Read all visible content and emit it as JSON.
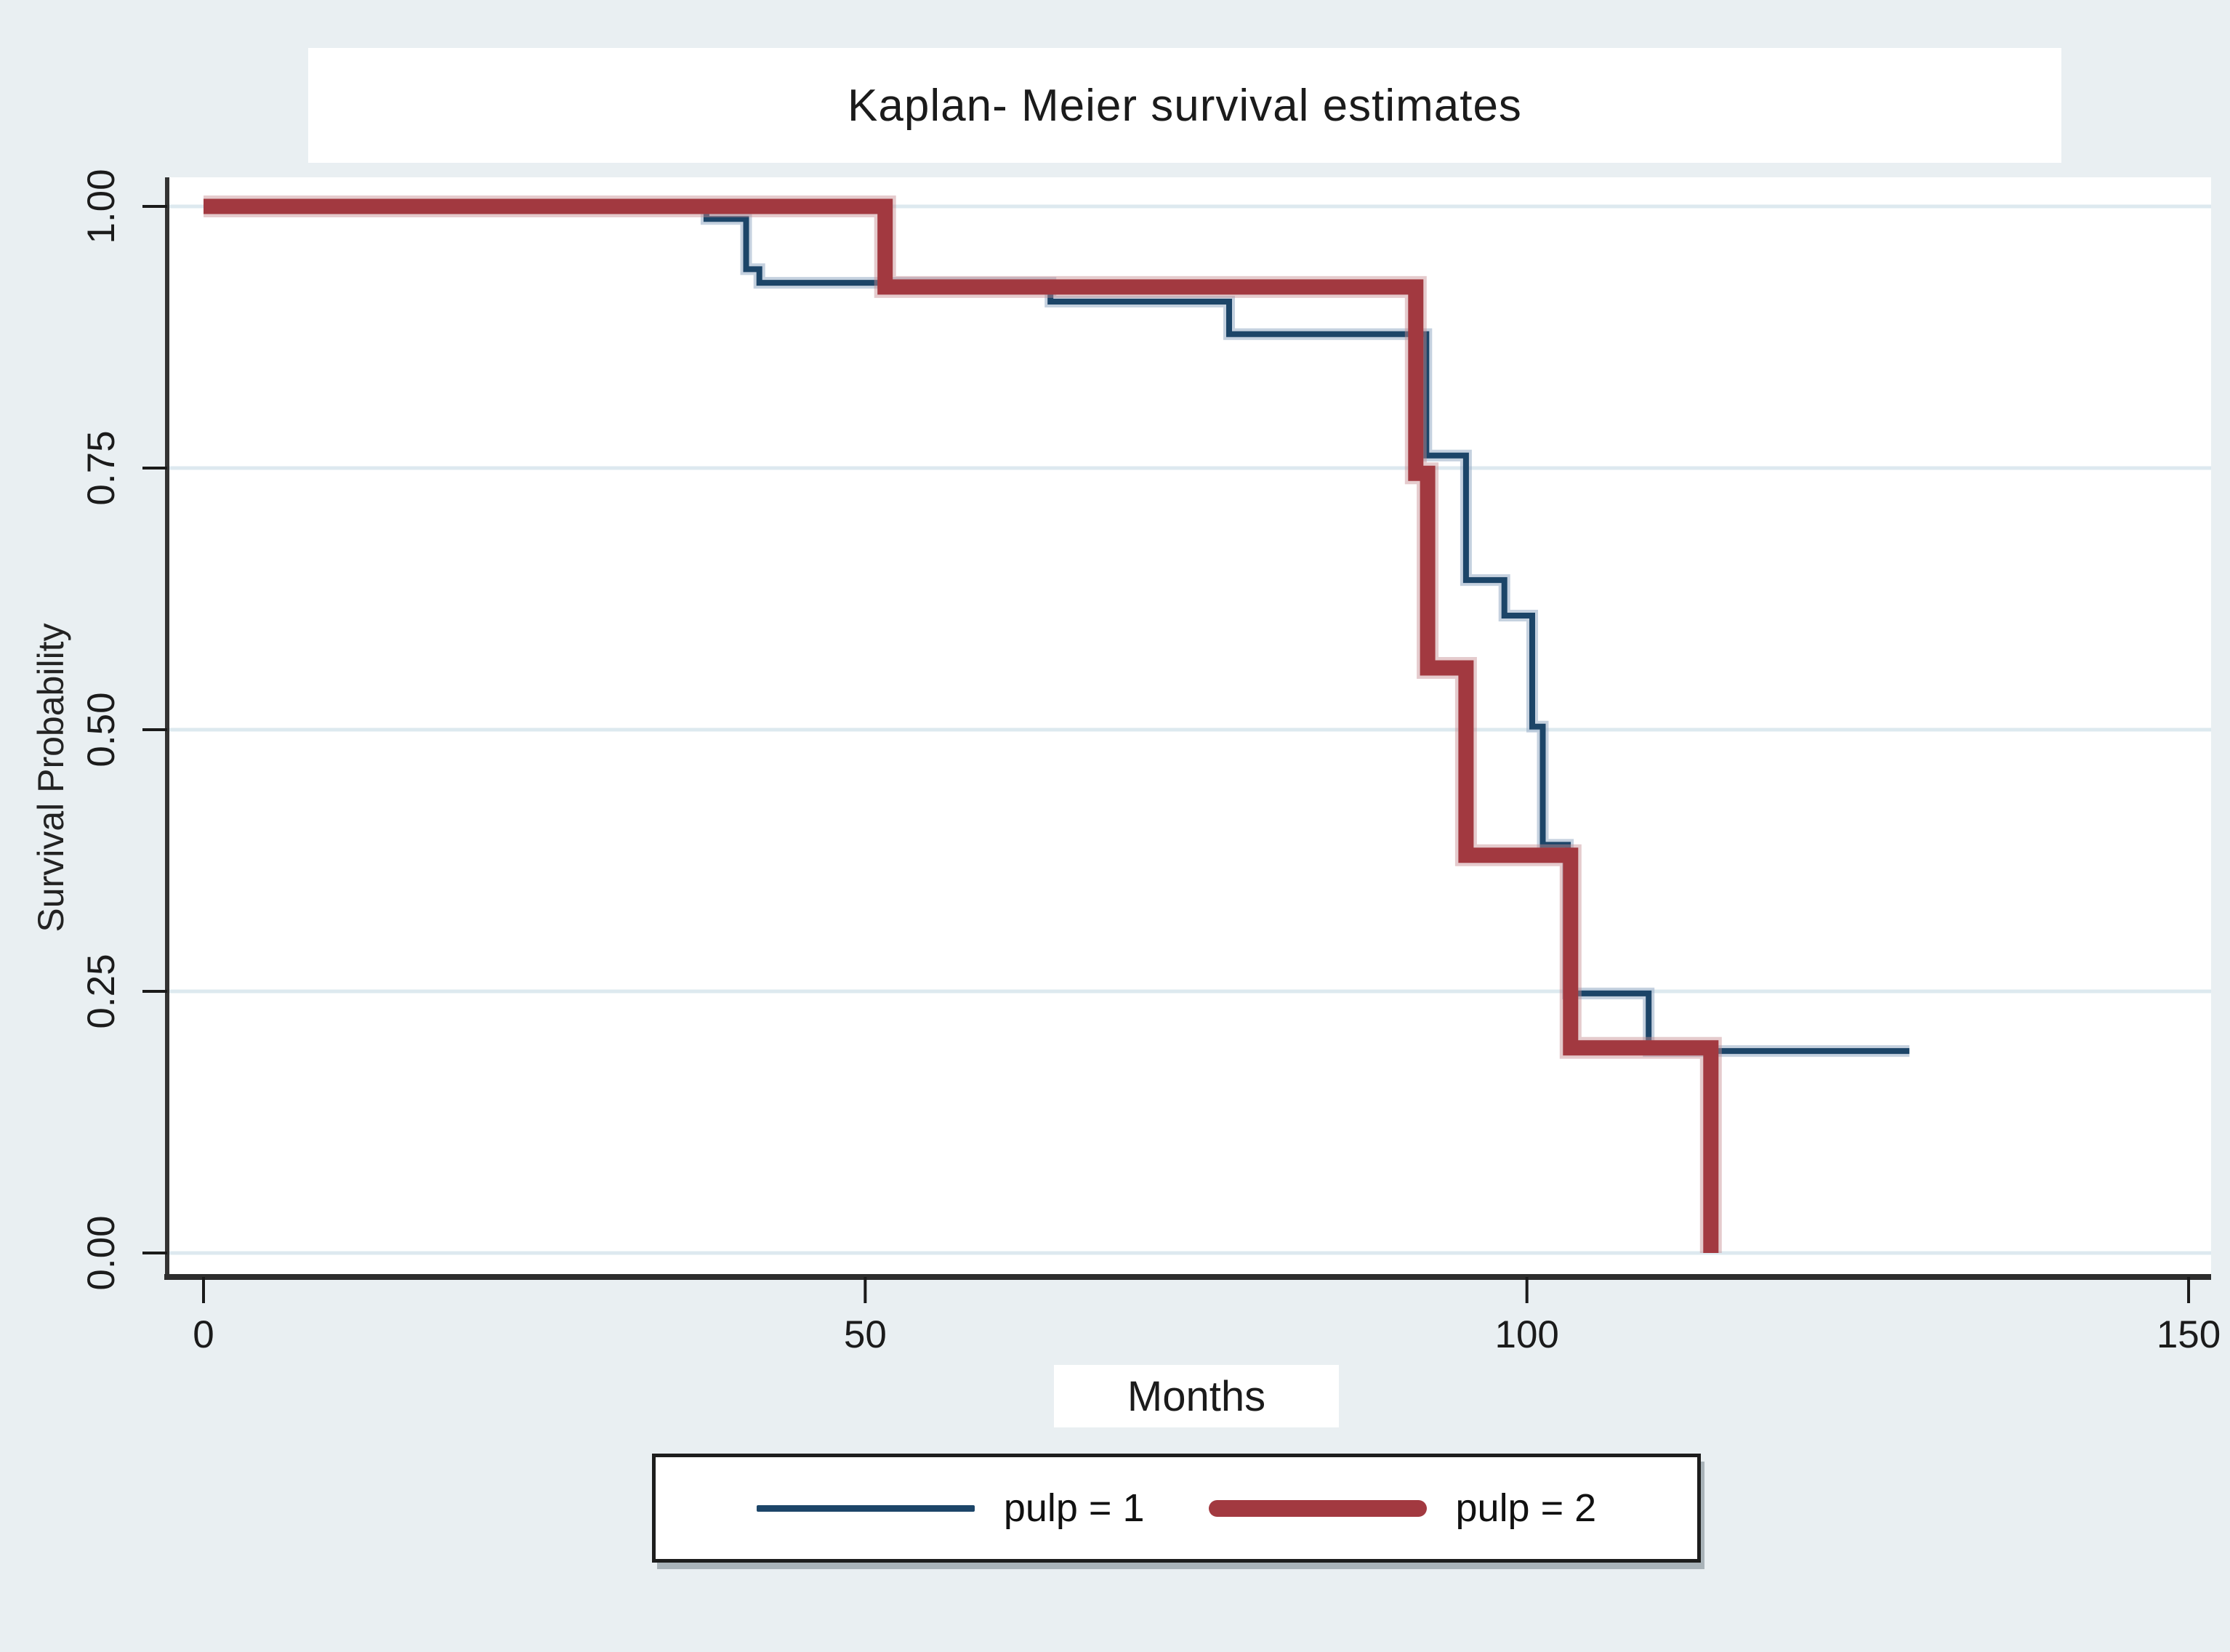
{
  "figure": {
    "title": "Kaplan- Meier survival estimates",
    "xlabel": "Months",
    "ylabel": "Survival Probability",
    "background_color": "#e9eff2",
    "plot_background_color": "#ffffff",
    "gridline_color": "#dde9ef",
    "axis_line_color": "#333333",
    "tick_color": "#1a1a1a"
  },
  "legend": {
    "items": [
      {
        "label": "pulp = 1",
        "color": "#1c4568",
        "style": "thin-line"
      },
      {
        "label": "pulp = 2",
        "color": "#a23940",
        "style": "thick-line"
      }
    ]
  },
  "chart_data": {
    "type": "line",
    "subtype": "kaplan-meier-step",
    "title": "Kaplan- Meier survival estimates",
    "xlabel": "Months",
    "ylabel": "Survival Probability",
    "xlim": [
      0,
      153
    ],
    "ylim": [
      0,
      1.02
    ],
    "x_ticks": [
      {
        "value": 0,
        "label": "0"
      },
      {
        "value": 50,
        "label": "50"
      },
      {
        "value": 100,
        "label": "100"
      },
      {
        "value": 150,
        "label": "150"
      }
    ],
    "y_ticks": [
      {
        "value": 0.0,
        "label": "0.00"
      },
      {
        "value": 0.25,
        "label": "0.25"
      },
      {
        "value": 0.5,
        "label": "0.50"
      },
      {
        "value": 0.75,
        "label": "0.75"
      },
      {
        "value": 1.0,
        "label": "1.00"
      }
    ],
    "grid": "horizontal-only",
    "legend_position": "below-plot",
    "series": [
      {
        "name": "pulp = 1",
        "color": "#1c4568",
        "halo_color": "rgba(150,172,196,0.55)",
        "line_width": 8,
        "halo_width": 16,
        "points": [
          [
            0,
            1.0
          ],
          [
            38,
            1.0
          ],
          [
            38,
            0.988
          ],
          [
            41,
            0.988
          ],
          [
            41,
            0.94
          ],
          [
            42,
            0.94
          ],
          [
            42,
            0.927
          ],
          [
            64,
            0.927
          ],
          [
            64,
            0.909
          ],
          [
            77.5,
            0.909
          ],
          [
            77.5,
            0.878
          ],
          [
            92.4,
            0.878
          ],
          [
            92.4,
            0.762
          ],
          [
            95.4,
            0.762
          ],
          [
            95.4,
            0.643
          ],
          [
            98.3,
            0.643
          ],
          [
            98.3,
            0.609
          ],
          [
            100.4,
            0.609
          ],
          [
            100.4,
            0.503
          ],
          [
            101.2,
            0.503
          ],
          [
            101.2,
            0.39
          ],
          [
            103.1,
            0.39
          ],
          [
            103.1,
            0.248
          ],
          [
            109.2,
            0.248
          ],
          [
            109.2,
            0.193
          ],
          [
            128.9,
            0.193
          ]
        ]
      },
      {
        "name": "pulp = 2",
        "color": "#a23940",
        "halo_color": "rgba(198,140,144,0.45)",
        "line_width": 21,
        "halo_width": 30,
        "points": [
          [
            0,
            1.0
          ],
          [
            51.5,
            1.0
          ],
          [
            51.5,
            0.923
          ],
          [
            91.6,
            0.923
          ],
          [
            91.6,
            0.745
          ],
          [
            92.5,
            0.745
          ],
          [
            92.5,
            0.559
          ],
          [
            95.4,
            0.559
          ],
          [
            95.4,
            0.38
          ],
          [
            103.3,
            0.38
          ],
          [
            103.3,
            0.196
          ],
          [
            113.9,
            0.196
          ],
          [
            113.9,
            0.0
          ]
        ]
      }
    ]
  }
}
